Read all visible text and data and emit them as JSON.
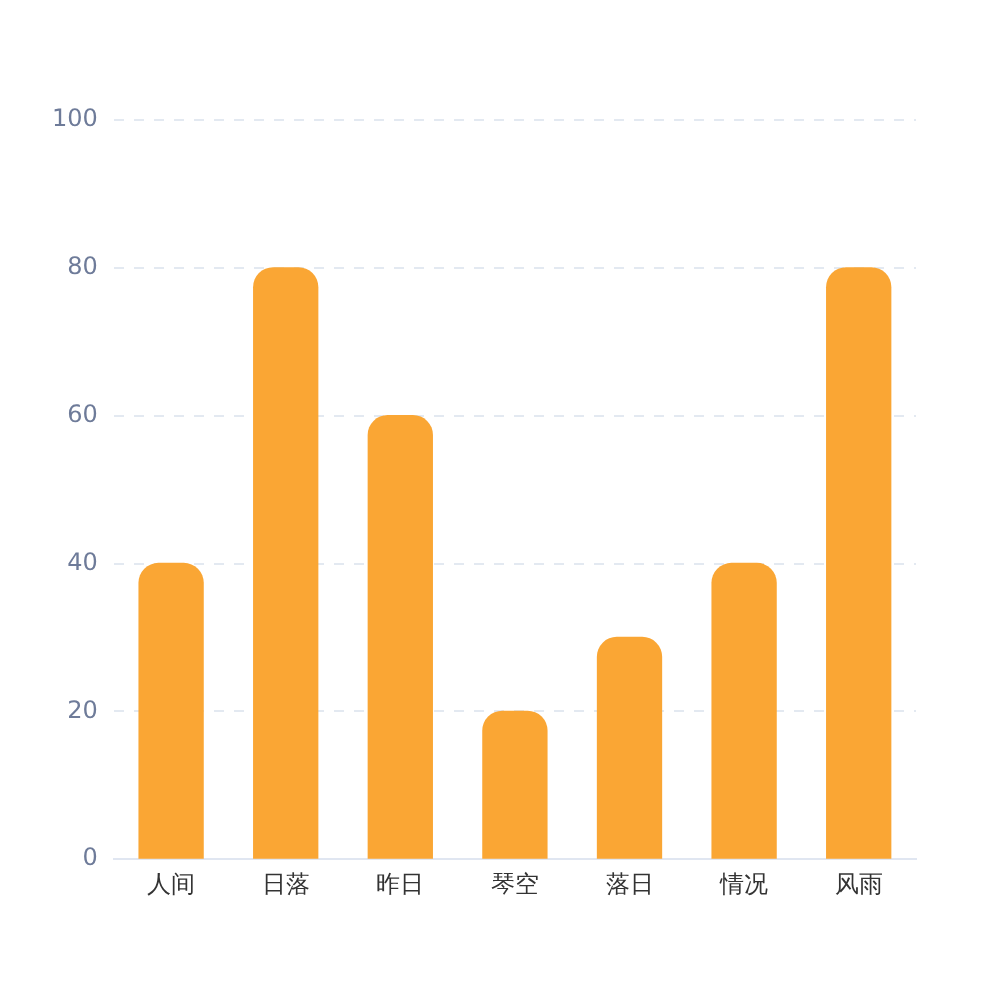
{
  "chart_data": {
    "type": "bar",
    "categories": [
      "人间",
      "日落",
      "昨日",
      "琴空",
      "落日",
      "情况",
      "风雨"
    ],
    "values": [
      40,
      80,
      60,
      20,
      30,
      40,
      80
    ],
    "color": "#faa634",
    "ylim": [
      0,
      100
    ],
    "yticks": [
      0,
      20,
      40,
      60,
      80,
      100
    ],
    "grid": "y",
    "legend": false
  }
}
